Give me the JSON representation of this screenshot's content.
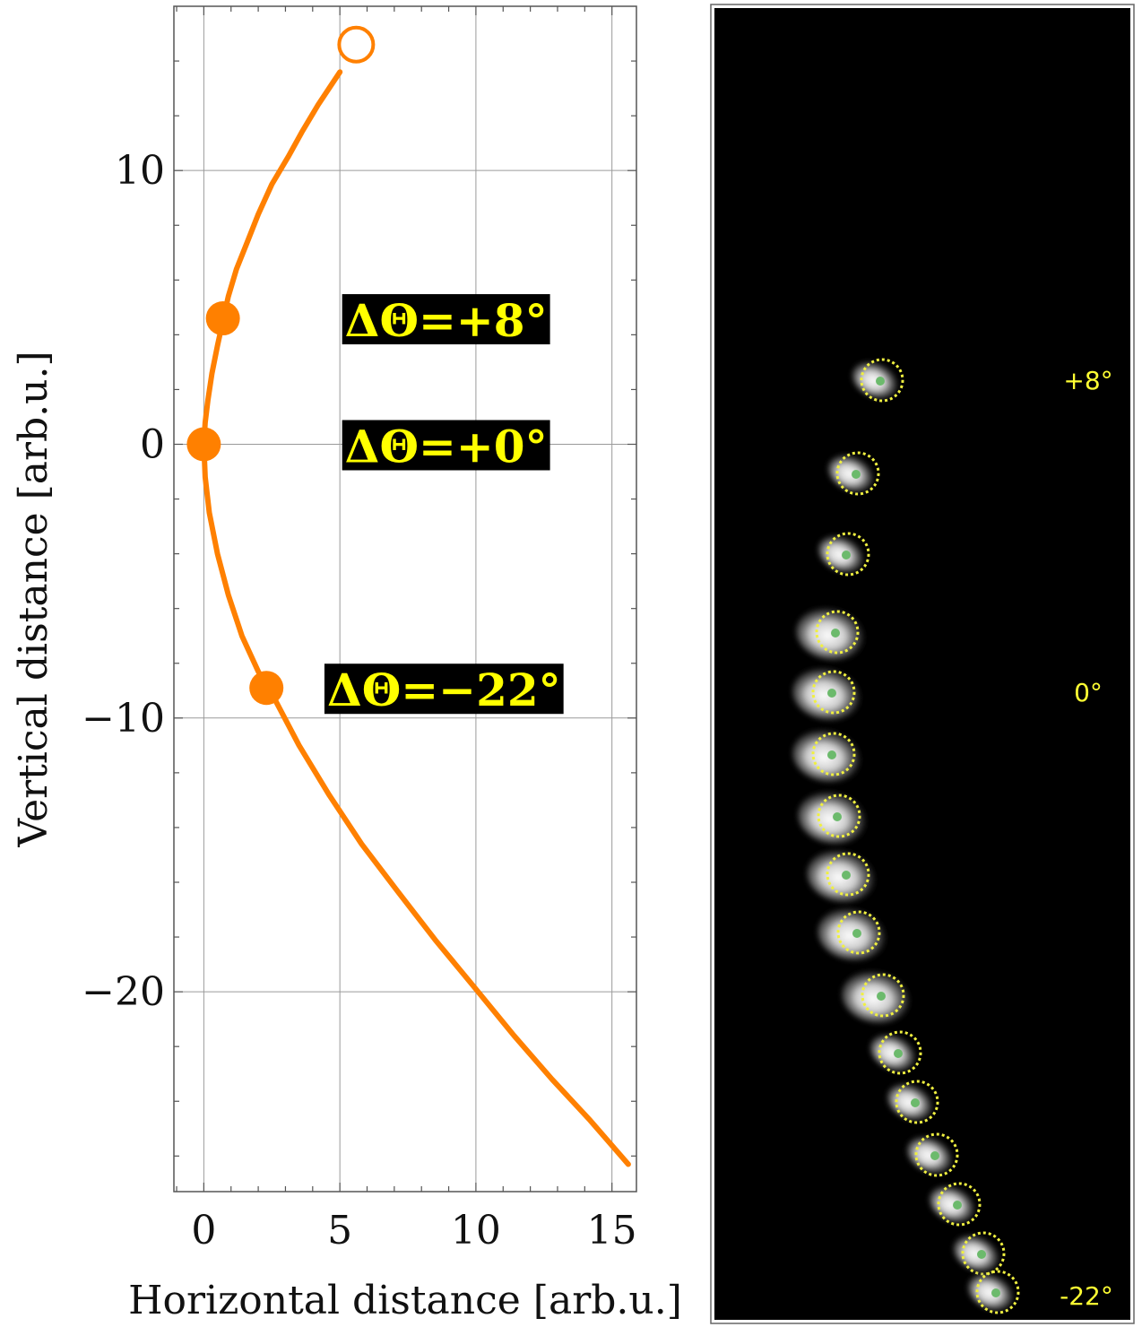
{
  "chart_data": [
    {
      "type": "line",
      "title": "",
      "xlabel": "Horizontal distance [arb.u.]",
      "ylabel": "Vertical distance [arb.u.]",
      "xlim": [
        -1.1,
        15.9
      ],
      "ylim": [
        -27.3,
        16.0
      ],
      "xticks": [
        0,
        5,
        10,
        15
      ],
      "yticks": [
        -20,
        -10,
        0,
        10
      ],
      "grid": true,
      "series": [
        {
          "color": "#ff8000",
          "x": [
            5.0,
            4.2,
            3.6,
            3.1,
            2.5,
            2.0,
            1.6,
            1.2,
            0.9,
            0.7,
            0.5,
            0.3,
            0.15,
            0.05,
            0.0,
            0.05,
            0.2,
            0.5,
            0.9,
            1.4,
            2.0,
            2.6,
            3.5,
            4.6,
            5.8,
            7.1,
            8.5,
            10.0,
            11.4,
            12.8,
            14.2,
            15.6
          ],
          "y": [
            13.6,
            12.4,
            11.4,
            10.5,
            9.5,
            8.4,
            7.4,
            6.4,
            5.4,
            4.5,
            3.6,
            2.6,
            1.6,
            0.8,
            0.0,
            -1.2,
            -2.5,
            -4.0,
            -5.5,
            -7.0,
            -8.3,
            -9.3,
            -11.0,
            -12.8,
            -14.6,
            -16.3,
            -18.1,
            -19.9,
            -21.6,
            -23.2,
            -24.7,
            -26.3
          ]
        }
      ],
      "markers": [
        {
          "x": 5.6,
          "y": 14.6,
          "style": "open"
        },
        {
          "x": 0.7,
          "y": 4.6,
          "style": "filled"
        },
        {
          "x": 0.0,
          "y": 0.0,
          "style": "filled"
        },
        {
          "x": 2.3,
          "y": -8.9,
          "style": "filled"
        }
      ],
      "annotations": [
        {
          "text": "ΔΘ=+8°",
          "x": 5.05,
          "y": 4.6
        },
        {
          "text": "ΔΘ=+0°",
          "x": 5.05,
          "y": 0.0
        },
        {
          "text": "ΔΘ=−22°",
          "x": 4.4,
          "y": -8.9
        }
      ]
    }
  ],
  "image_panel": {
    "background": "#000000",
    "frame_color": "#444444",
    "circle_color": "#f0f040",
    "dot_color": "#6cba6c",
    "labels": [
      "+8°",
      "0°",
      "-22°"
    ],
    "spot_count": 17
  }
}
